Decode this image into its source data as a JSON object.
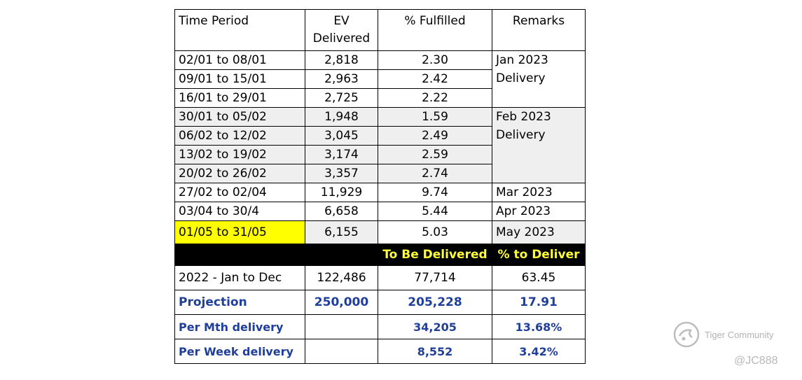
{
  "headers": [
    "Time Period",
    "EV Delivered",
    "% Fulfilled",
    "Remarks"
  ],
  "weekly_rows": [
    {
      "period": "02/01 to 08/01",
      "ev": "2,818",
      "pct": "2.30"
    },
    {
      "period": "09/01 to 15/01",
      "ev": "2,963",
      "pct": "2.42"
    },
    {
      "period": "16/01 to 29/01",
      "ev": "2,725",
      "pct": "2.22"
    },
    {
      "period": "30/01 to 05/02",
      "ev": "1,948",
      "pct": "1.59"
    },
    {
      "period": "06/02 to 12/02",
      "ev": "3,045",
      "pct": "2.49"
    },
    {
      "period": "13/02 to 19/02",
      "ev": "3,174",
      "pct": "2.59"
    },
    {
      "period": "20/02 to 26/02",
      "ev": "3,357",
      "pct": "2.74"
    },
    {
      "period": "27/02 to 02/04",
      "ev": "11,929",
      "pct": "9.74"
    },
    {
      "period": "03/04 to 30/4",
      "ev": "6,658",
      "pct": "5.44"
    },
    {
      "period": "01/05 to 31/05",
      "ev": "6,155",
      "pct": "5.03"
    }
  ],
  "remarks": {
    "jan": "Jan 2023 Delivery",
    "feb": "Feb 2023 Delivery",
    "mar": "Mar 2023",
    "apr": "Apr 2023",
    "may": "May 2023"
  },
  "summary_header": {
    "to_be_delivered": "To Be Delivered",
    "pct_to_deliver": "% to Deliver"
  },
  "summary_rows": [
    {
      "label": "2022 - Jan to Dec",
      "ev": "122,486",
      "tbd": "77,714",
      "pct": "63.45"
    },
    {
      "label": "Projection",
      "ev": "250,000",
      "tbd": "205,228",
      "pct": "17.91"
    },
    {
      "label": "Per Mth delivery",
      "ev": "",
      "tbd": "34,205",
      "pct": "13.68%"
    },
    {
      "label": "Per Week delivery",
      "ev": "",
      "tbd": "8,552",
      "pct": "3.42%"
    }
  ],
  "watermark": {
    "brand": "Tiger Community",
    "user": "@JC888"
  }
}
